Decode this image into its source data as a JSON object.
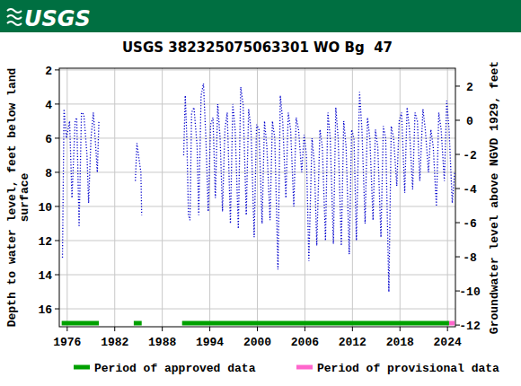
{
  "header": {
    "logo": "USGS"
  },
  "chart_data": {
    "type": "line",
    "title": "USGS 382325075063301 WO Bg  47",
    "ylabel": [
      "Depth to water level, feet below land",
      "surface"
    ],
    "y2label": "Groundwater level above NGVD 1929, feet",
    "x": [
      1975.4,
      1975.6,
      1975.9,
      1976.3,
      1976.6,
      1977.0,
      1977.2,
      1977.5,
      1977.8,
      1978.1,
      1978.5,
      1978.7,
      1979.0,
      1979.3,
      1979.6,
      1979.8,
      1980.0,
      1982.0,
      1984.6,
      1984.8,
      1985.0,
      1985.3,
      1985.4,
      1988.0,
      1990.7,
      1990.9,
      1991.1,
      1991.3,
      1991.5,
      1991.7,
      1992.0,
      1992.4,
      1992.6,
      1992.9,
      1993.2,
      1993.5,
      1993.8,
      1994.1,
      1994.4,
      1994.7,
      1995.0,
      1995.3,
      1995.6,
      1995.9,
      1996.2,
      1996.6,
      1996.9,
      1997.2,
      1997.6,
      1997.9,
      1998.2,
      1998.6,
      1998.9,
      1999.2,
      1999.6,
      1999.9,
      2000.2,
      2000.6,
      2000.9,
      2001.2,
      2001.6,
      2001.9,
      2002.2,
      2002.6,
      2002.9,
      2003.2,
      2003.6,
      2003.9,
      2004.2,
      2004.6,
      2004.9,
      2005.2,
      2005.6,
      2005.9,
      2006.2,
      2006.5,
      2006.9,
      2007.2,
      2007.5,
      2007.9,
      2008.2,
      2008.6,
      2008.9,
      2009.2,
      2009.6,
      2009.9,
      2010.2,
      2010.6,
      2010.9,
      2011.2,
      2011.6,
      2011.9,
      2012.2,
      2012.5,
      2012.9,
      2013.2,
      2013.6,
      2013.9,
      2014.2,
      2014.6,
      2014.9,
      2015.2,
      2015.6,
      2015.9,
      2016.2,
      2016.6,
      2016.9,
      2017.2,
      2017.6,
      2017.9,
      2018.2,
      2018.6,
      2018.9,
      2019.2,
      2019.6,
      2019.9,
      2020.2,
      2020.5,
      2020.9,
      2021.2,
      2021.6,
      2021.9,
      2022.2,
      2022.6,
      2022.9,
      2023.2,
      2023.6,
      2023.9,
      2024.2,
      2024.6,
      2024.9
    ],
    "series": [
      {
        "color": "#0000cc",
        "line_style": "dotted",
        "axis": "y",
        "values": [
          13.0,
          4.3,
          6.0,
          5.0,
          9.5,
          5.0,
          4.8,
          11.2,
          4.5,
          4.6,
          7.0,
          9.8,
          6.0,
          4.5,
          6.5,
          8.0,
          5.0,
          null,
          8.5,
          6.3,
          7.0,
          8.0,
          10.5,
          null,
          7.0,
          3.5,
          6.0,
          10.5,
          10.8,
          4.5,
          4.2,
          6.5,
          10.5,
          3.5,
          2.8,
          6.0,
          10.3,
          5.2,
          4.8,
          9.5,
          4.0,
          6.0,
          10.3,
          5.5,
          4.5,
          11.0,
          4.0,
          5.5,
          11.3,
          3.0,
          4.0,
          10.5,
          4.3,
          5.5,
          11.8,
          5.2,
          5.5,
          11.0,
          5.0,
          6.5,
          10.8,
          5.0,
          6.0,
          13.7,
          3.5,
          5.0,
          9.5,
          4.5,
          5.5,
          10.0,
          4.8,
          5.5,
          8.0,
          5.8,
          7.0,
          13.2,
          6.0,
          7.5,
          12.3,
          5.5,
          6.5,
          12.0,
          4.5,
          6.0,
          12.2,
          4.2,
          6.0,
          12.3,
          5.0,
          6.5,
          12.8,
          5.5,
          6.0,
          12.0,
          3.3,
          5.5,
          11.0,
          4.8,
          6.0,
          10.8,
          5.5,
          6.5,
          11.8,
          5.3,
          6.0,
          15.0,
          5.3,
          6.0,
          8.8,
          5.0,
          4.5,
          9.2,
          4.2,
          5.5,
          9.0,
          4.5,
          5.0,
          8.5,
          4.3,
          5.5,
          8.0,
          5.5,
          6.5,
          10.0,
          4.5,
          5.5,
          8.5,
          3.8,
          5.5,
          9.8,
          8.0
        ]
      }
    ],
    "xlim": [
      1975.0,
      2025.0
    ],
    "xticks": [
      1976,
      1982,
      1988,
      1994,
      2000,
      2006,
      2012,
      2018,
      2024
    ],
    "ylim": [
      1.9,
      17.05
    ],
    "yticks": [
      2,
      4,
      6,
      8,
      10,
      12,
      14,
      16
    ],
    "y2lim": [
      3.05,
      -12.1
    ],
    "y2ticks": [
      2,
      0,
      -2,
      -4,
      -6,
      -8,
      -10,
      -12
    ],
    "grid": true,
    "legend": "bottom",
    "periods": [
      {
        "name": "Period of approved data",
        "color": "#00a000",
        "spans": [
          [
            1975.3,
            1980.0
          ],
          [
            1984.4,
            1985.4
          ],
          [
            1990.5,
            2024.2
          ]
        ]
      },
      {
        "name": "Period of provisional data",
        "color": "#ff66cc",
        "spans": [
          [
            2024.2,
            2024.9
          ]
        ]
      }
    ]
  }
}
